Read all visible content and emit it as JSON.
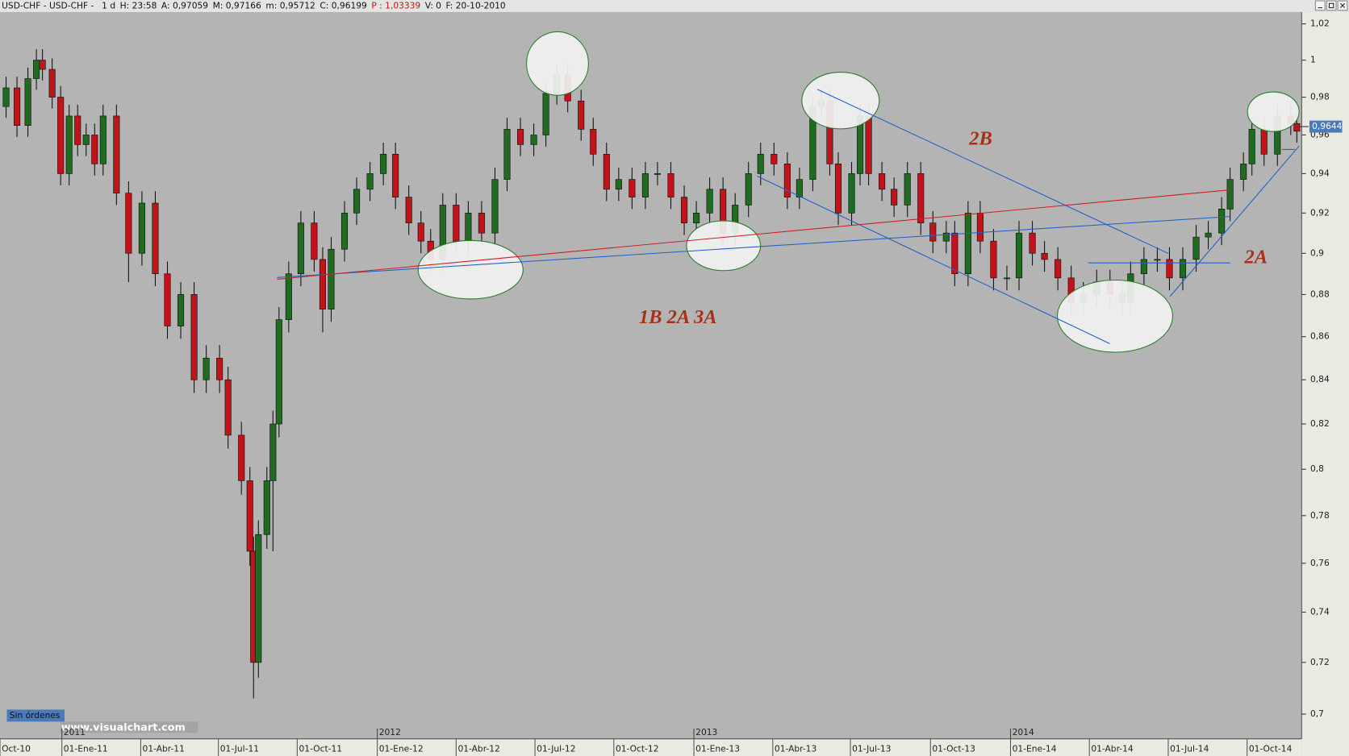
{
  "chart_data": {
    "type": "candlestick",
    "header": [
      "USD-CHF - USD-CHF -",
      "1 d",
      "H: 23:58",
      "A: 0,97059",
      "M: 0,97166",
      "m: 0,95712",
      "C: 0,96199",
      "P : 1,03339",
      "V: 0",
      "F: 20-10-2010"
    ],
    "x": [
      5,
      14,
      23,
      30,
      35,
      43,
      50,
      57,
      64,
      71,
      78,
      85,
      96,
      106,
      117,
      128,
      138,
      149,
      160,
      170,
      181,
      188,
      199,
      206,
      209,
      213,
      220,
      225,
      230,
      238,
      248,
      259,
      266,
      273,
      284,
      294,
      305,
      316,
      326,
      337,
      347,
      355,
      365,
      376,
      386,
      397,
      408,
      418,
      429,
      440,
      450,
      459,
      468,
      479,
      489,
      500,
      510,
      521,
      532,
      542,
      553,
      564,
      574,
      585,
      596,
      606,
      617,
      627,
      638,
      649,
      659,
      670,
      677,
      684,
      691,
      702,
      709,
      716,
      727,
      737,
      748,
      759,
      769,
      780,
      787,
      798,
      808,
      819,
      830,
      840,
      851,
      861,
      872,
      883,
      893,
      904,
      915,
      925,
      932,
      943,
      954,
      964,
      975,
      986,
      996,
      1007,
      1014,
      1025,
      1032,
      1042,
      1053,
      1064,
      1069
    ],
    "open": [
      0.975,
      0.985,
      0.965,
      0.99,
      1.0,
      0.995,
      0.98,
      0.94,
      0.97,
      0.955,
      0.96,
      0.945,
      0.97,
      0.93,
      0.9,
      0.925,
      0.89,
      0.865,
      0.88,
      0.84,
      0.85,
      0.84,
      0.815,
      0.795,
      0.765,
      0.72,
      0.772,
      0.795,
      0.82,
      0.868,
      0.89,
      0.915,
      0.897,
      0.873,
      0.902,
      0.92,
      0.932,
      0.94,
      0.95,
      0.928,
      0.915,
      0.906,
      0.897,
      0.924,
      0.906,
      0.92,
      0.91,
      0.937,
      0.963,
      0.955,
      0.96,
      0.982,
      0.992,
      0.978,
      0.963,
      0.95,
      0.932,
      0.937,
      0.928,
      0.94,
      0.94,
      0.928,
      0.915,
      0.92,
      0.932,
      0.91,
      0.924,
      0.94,
      0.95,
      0.945,
      0.928,
      0.937,
      0.975,
      0.978,
      0.945,
      0.92,
      0.94,
      0.97,
      0.94,
      0.932,
      0.924,
      0.94,
      0.915,
      0.906,
      0.91,
      0.89,
      0.92,
      0.906,
      0.888,
      0.888,
      0.91,
      0.9,
      0.897,
      0.888,
      0.876,
      0.88,
      0.886,
      0.88,
      0.876,
      0.89,
      0.897,
      0.897,
      0.888,
      0.897,
      0.908,
      0.91,
      0.922,
      0.937,
      0.945,
      0.963,
      0.95,
      0.97,
      0.966
    ],
    "high": [
      0.991,
      0.991,
      0.996,
      1.006,
      1.006,
      1.001,
      0.986,
      0.976,
      0.976,
      0.966,
      0.966,
      0.976,
      0.976,
      0.936,
      0.931,
      0.931,
      0.896,
      0.886,
      0.886,
      0.856,
      0.856,
      0.846,
      0.821,
      0.801,
      0.771,
      0.778,
      0.801,
      0.826,
      0.874,
      0.896,
      0.921,
      0.921,
      0.903,
      0.908,
      0.926,
      0.938,
      0.946,
      0.956,
      0.956,
      0.934,
      0.921,
      0.912,
      0.93,
      0.93,
      0.926,
      0.926,
      0.943,
      0.969,
      0.969,
      0.966,
      0.988,
      0.998,
      0.998,
      0.984,
      0.969,
      0.956,
      0.943,
      0.943,
      0.946,
      0.946,
      0.946,
      0.934,
      0.926,
      0.938,
      0.938,
      0.93,
      0.946,
      0.956,
      0.956,
      0.951,
      0.943,
      0.981,
      0.984,
      0.984,
      0.951,
      0.946,
      0.976,
      0.976,
      0.946,
      0.938,
      0.946,
      0.946,
      0.921,
      0.916,
      0.916,
      0.926,
      0.926,
      0.912,
      0.894,
      0.916,
      0.916,
      0.906,
      0.903,
      0.894,
      0.886,
      0.892,
      0.892,
      0.886,
      0.896,
      0.903,
      0.903,
      0.903,
      0.903,
      0.914,
      0.916,
      0.928,
      0.943,
      0.951,
      0.969,
      0.969,
      0.976,
      0.976,
      0.972
    ],
    "low": [
      0.969,
      0.959,
      0.959,
      0.984,
      0.989,
      0.974,
      0.934,
      0.934,
      0.949,
      0.949,
      0.939,
      0.939,
      0.924,
      0.886,
      0.894,
      0.884,
      0.859,
      0.859,
      0.834,
      0.834,
      0.834,
      0.809,
      0.789,
      0.759,
      0.706,
      0.714,
      0.766,
      0.765,
      0.814,
      0.862,
      0.884,
      0.891,
      0.862,
      0.867,
      0.896,
      0.914,
      0.926,
      0.934,
      0.922,
      0.909,
      0.9,
      0.891,
      0.891,
      0.9,
      0.9,
      0.904,
      0.904,
      0.931,
      0.949,
      0.949,
      0.954,
      0.976,
      0.972,
      0.957,
      0.944,
      0.926,
      0.926,
      0.922,
      0.922,
      0.934,
      0.922,
      0.909,
      0.909,
      0.914,
      0.904,
      0.904,
      0.918,
      0.934,
      0.939,
      0.922,
      0.922,
      0.931,
      0.969,
      0.939,
      0.914,
      0.914,
      0.934,
      0.934,
      0.926,
      0.918,
      0.918,
      0.909,
      0.9,
      0.9,
      0.884,
      0.884,
      0.9,
      0.882,
      0.882,
      0.882,
      0.894,
      0.891,
      0.882,
      0.87,
      0.87,
      0.874,
      0.874,
      0.87,
      0.87,
      0.884,
      0.891,
      0.882,
      0.882,
      0.891,
      0.902,
      0.904,
      0.916,
      0.931,
      0.939,
      0.944,
      0.944,
      0.96,
      0.956
    ],
    "close": [
      0.985,
      0.965,
      0.99,
      1.0,
      0.995,
      0.98,
      0.94,
      0.97,
      0.955,
      0.96,
      0.945,
      0.97,
      0.93,
      0.9,
      0.925,
      0.89,
      0.865,
      0.88,
      0.84,
      0.85,
      0.84,
      0.815,
      0.795,
      0.765,
      0.72,
      0.772,
      0.795,
      0.82,
      0.868,
      0.89,
      0.915,
      0.897,
      0.873,
      0.902,
      0.92,
      0.932,
      0.94,
      0.95,
      0.928,
      0.915,
      0.906,
      0.897,
      0.924,
      0.906,
      0.92,
      0.91,
      0.937,
      0.963,
      0.955,
      0.96,
      0.982,
      0.992,
      0.978,
      0.963,
      0.95,
      0.932,
      0.937,
      0.928,
      0.94,
      0.94,
      0.928,
      0.915,
      0.92,
      0.932,
      0.91,
      0.924,
      0.94,
      0.95,
      0.945,
      0.928,
      0.937,
      0.975,
      0.978,
      0.945,
      0.92,
      0.94,
      0.97,
      0.94,
      0.932,
      0.924,
      0.94,
      0.915,
      0.906,
      0.91,
      0.89,
      0.92,
      0.906,
      0.888,
      0.888,
      0.91,
      0.9,
      0.897,
      0.888,
      0.876,
      0.88,
      0.886,
      0.88,
      0.876,
      0.89,
      0.897,
      0.897,
      0.888,
      0.897,
      0.908,
      0.91,
      0.922,
      0.937,
      0.945,
      0.963,
      0.95,
      0.97,
      0.966,
      0.962
    ],
    "up_color": "#1f6b1f",
    "down_color": "#c0141a",
    "log": true,
    "grid": false,
    "xlim": [
      0,
      1073
    ],
    "xticks": [
      {
        "value": 0,
        "label": "Oct-10"
      },
      {
        "value": 51,
        "label": "01-Ene-11"
      },
      {
        "value": 116,
        "label": "01-Abr-11"
      },
      {
        "value": 180,
        "label": "01-Jul-11"
      },
      {
        "value": 245,
        "label": "01-Oct-11"
      },
      {
        "value": 311,
        "label": "01-Ene-12"
      },
      {
        "value": 376,
        "label": "01-Abr-12"
      },
      {
        "value": 441,
        "label": "01-Jul-12"
      },
      {
        "value": 506,
        "label": "01-Oct-12"
      },
      {
        "value": 572,
        "label": "01-Ene-13"
      },
      {
        "value": 637,
        "label": "01-Abr-13"
      },
      {
        "value": 701,
        "label": "01-Jul-13"
      },
      {
        "value": 767,
        "label": "01-Oct-13"
      },
      {
        "value": 833,
        "label": "01-Ene-14"
      },
      {
        "value": 898,
        "label": "01-Abr-14"
      },
      {
        "value": 963,
        "label": "01-Jul-14"
      },
      {
        "value": 1028,
        "label": "01-Oct-14"
      }
    ],
    "year_ticks": [
      {
        "value": 51,
        "label": "2011"
      },
      {
        "value": 311,
        "label": "2012"
      },
      {
        "value": 572,
        "label": "2013"
      },
      {
        "value": 833,
        "label": "2014"
      }
    ],
    "ylim": [
      0.6906,
      1.0266
    ],
    "yticks": [
      {
        "value": 1.02,
        "label": "1,02"
      },
      1,
      {
        "value": 0.98,
        "label": "0,98"
      },
      {
        "value": 0.96,
        "label": "0,96"
      },
      {
        "value": 0.94,
        "label": "0,94"
      },
      {
        "value": 0.92,
        "label": "0,92"
      },
      {
        "value": 0.9,
        "label": "0,9"
      },
      {
        "value": 0.88,
        "label": "0,88"
      },
      {
        "value": 0.86,
        "label": "0,86"
      },
      {
        "value": 0.84,
        "label": "0,84"
      },
      {
        "value": 0.82,
        "label": "0,82"
      },
      {
        "value": 0.8,
        "label": "0,8"
      },
      {
        "value": 0.78,
        "label": "0,78"
      },
      {
        "value": 0.76,
        "label": "0,76"
      },
      {
        "value": 0.74,
        "label": "0,74"
      },
      {
        "value": 0.72,
        "label": "0,72"
      },
      {
        "value": 0.7,
        "label": "0,7"
      }
    ],
    "last_price": {
      "value": 0.9644,
      "label": "0,9644"
    },
    "annotations": [
      "2B",
      "2A",
      "1B 2A 3A"
    ],
    "status": "Sin órdenes",
    "watermark": "www.visualchart.com"
  }
}
